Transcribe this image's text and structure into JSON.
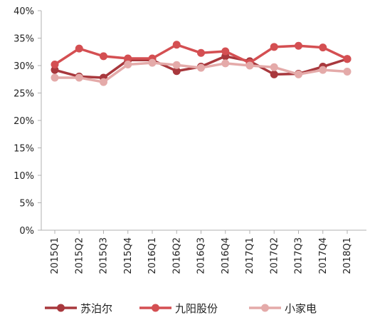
{
  "chart_data": {
    "type": "line",
    "title": "",
    "xlabel": "",
    "ylabel": "",
    "categories": [
      "2015Q1",
      "2015Q2",
      "2015Q3",
      "2015Q4",
      "2016Q1",
      "2016Q2",
      "2016Q3",
      "2016Q4",
      "2017Q1",
      "2017Q2",
      "2017Q3",
      "2017Q4",
      "2018Q1"
    ],
    "yticks": [
      "0%",
      "5%",
      "10%",
      "15%",
      "20%",
      "25%",
      "30%",
      "35%",
      "40%"
    ],
    "ylim": [
      0,
      40
    ],
    "grid": false,
    "legend_position": "bottom",
    "series": [
      {
        "name": "苏泊尔",
        "color": "#a8383d",
        "values": [
          29.2,
          28.0,
          27.8,
          31.0,
          31.0,
          29.0,
          29.8,
          31.7,
          30.8,
          28.4,
          28.5,
          29.8,
          31.2
        ]
      },
      {
        "name": "九阳股份",
        "color": "#d44f52",
        "values": [
          30.2,
          33.1,
          31.7,
          31.3,
          31.3,
          33.8,
          32.3,
          32.6,
          30.5,
          33.4,
          33.6,
          33.3,
          31.2
        ]
      },
      {
        "name": "小家电",
        "color": "#e4aaa9",
        "values": [
          27.8,
          27.8,
          27.0,
          30.2,
          30.5,
          30.1,
          29.6,
          30.4,
          30.0,
          29.7,
          28.4,
          29.2,
          28.9
        ]
      }
    ]
  }
}
